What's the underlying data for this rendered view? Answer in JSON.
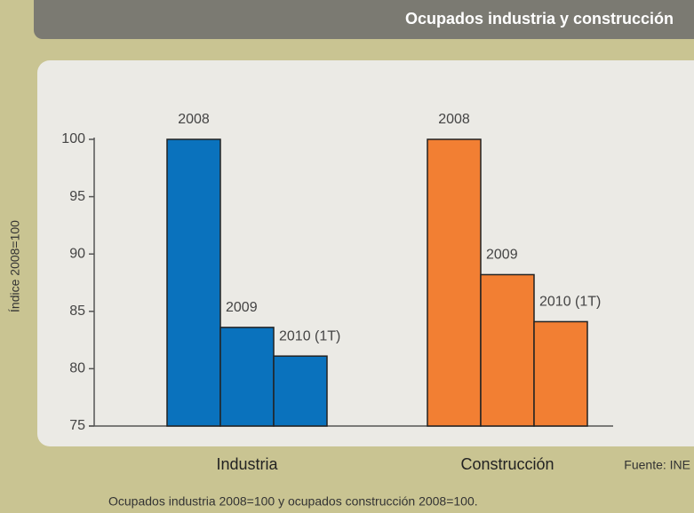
{
  "chart_data": {
    "type": "bar",
    "title": "Ocupados industria y construcción",
    "y_label": "Índice 2008=100",
    "source": "Fuente: INE",
    "footnote": "Ocupados industria 2008=100 y ocupados construcción 2008=100.",
    "categories": [
      "Industria",
      "Construcción"
    ],
    "colors": [
      "#0a72bd",
      "#f27f33"
    ],
    "series": [
      {
        "name": "2008",
        "values": [
          100,
          100
        ]
      },
      {
        "name": "2009",
        "values": [
          83.6,
          88.2
        ]
      },
      {
        "name": "2010 (1T)",
        "values": [
          81.1,
          84.1
        ]
      }
    ],
    "ylim": [
      75,
      100
    ],
    "yticks": [
      75,
      80,
      85,
      90,
      95,
      100
    ]
  }
}
